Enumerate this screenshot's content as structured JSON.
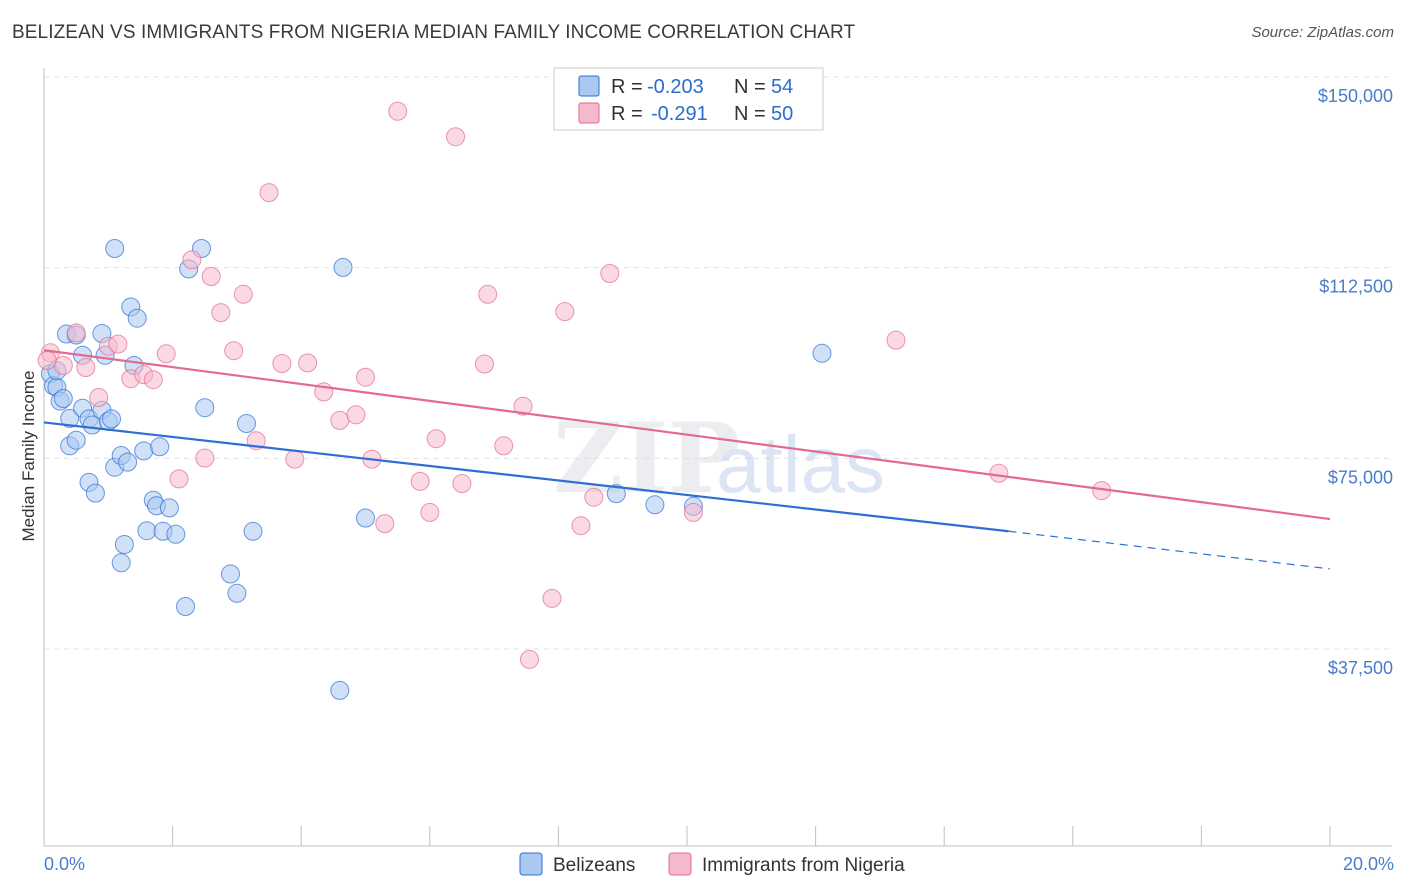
{
  "title": "BELIZEAN VS IMMIGRANTS FROM NIGERIA MEDIAN FAMILY INCOME CORRELATION CHART",
  "source": "Source: ZipAtlas.com",
  "watermark": {
    "zip": "ZIP",
    "atlas": "atlas"
  },
  "colors": {
    "blue": "#2d6fd4",
    "blue_fill": "#aac8f0",
    "pink": "#e46a93",
    "pink_fill": "#f5b9cc",
    "axis_text": "#4a7cc9"
  },
  "legend": {
    "rows": [
      {
        "r_label": "R =",
        "r_value": "-0.203",
        "n_label": "N =",
        "n_value": "54"
      },
      {
        "r_label": "R =",
        "r_value": "-0.291",
        "n_label": "N =",
        "n_value": "50"
      }
    ]
  },
  "chart_data": {
    "type": "scatter",
    "xlabel": "",
    "ylabel": "Median Family Income",
    "x_range": [
      0,
      20
    ],
    "ylim": [
      0,
      155000
    ],
    "y_ticks": [
      37500,
      75000,
      112500,
      150000
    ],
    "y_tick_labels": [
      "$37,500",
      "$75,000",
      "$112,500",
      "$150,000"
    ],
    "x_tick_labels": [
      "0.0%",
      "20.0%"
    ],
    "series": [
      {
        "name": "Belizeans",
        "color": "#2d6fd4",
        "r": -0.203,
        "n": 54,
        "trend": {
          "x0": 0,
          "y0": 85800,
          "x1": 15,
          "y1": 64400,
          "dash_x1": 20,
          "dash_y1": 57000
        },
        "points": [
          [
            0.1,
            95400
          ],
          [
            0.15,
            93000
          ],
          [
            0.2,
            92700
          ],
          [
            0.25,
            90000
          ],
          [
            0.3,
            90500
          ],
          [
            0.35,
            103200
          ],
          [
            0.4,
            86600
          ],
          [
            0.4,
            81200
          ],
          [
            0.5,
            103000
          ],
          [
            0.5,
            82300
          ],
          [
            0.6,
            88600
          ],
          [
            0.6,
            99000
          ],
          [
            0.7,
            86500
          ],
          [
            0.7,
            74000
          ],
          [
            0.75,
            85300
          ],
          [
            0.8,
            71900
          ],
          [
            0.9,
            103300
          ],
          [
            0.9,
            88200
          ],
          [
            0.95,
            99000
          ],
          [
            1.0,
            86000
          ],
          [
            1.05,
            86500
          ],
          [
            1.1,
            120000
          ],
          [
            1.1,
            77000
          ],
          [
            1.2,
            79300
          ],
          [
            1.2,
            58200
          ],
          [
            1.25,
            61800
          ],
          [
            1.3,
            78000
          ],
          [
            1.35,
            108500
          ],
          [
            1.4,
            97000
          ],
          [
            1.45,
            106300
          ],
          [
            1.55,
            80200
          ],
          [
            1.6,
            64500
          ],
          [
            1.7,
            70500
          ],
          [
            1.75,
            69400
          ],
          [
            1.8,
            81000
          ],
          [
            1.85,
            64400
          ],
          [
            1.95,
            69000
          ],
          [
            2.05,
            63800
          ],
          [
            2.2,
            49600
          ],
          [
            2.25,
            116000
          ],
          [
            2.45,
            120000
          ],
          [
            2.5,
            88700
          ],
          [
            2.9,
            56000
          ],
          [
            3.0,
            52200
          ],
          [
            3.15,
            85600
          ],
          [
            3.25,
            64400
          ],
          [
            4.6,
            33100
          ],
          [
            4.65,
            116300
          ],
          [
            5.0,
            67000
          ],
          [
            8.9,
            71800
          ],
          [
            9.5,
            69600
          ],
          [
            10.1,
            69300
          ],
          [
            12.1,
            99400
          ],
          [
            0.2,
            96000
          ]
        ]
      },
      {
        "name": "Immigrants from Nigeria",
        "color": "#e46a93",
        "r": -0.291,
        "n": 50,
        "trend": {
          "x0": 0,
          "y0": 100000,
          "x1": 20,
          "y1": 66800
        },
        "points": [
          [
            0.1,
            99500
          ],
          [
            0.3,
            97000
          ],
          [
            0.5,
            103400
          ],
          [
            0.65,
            96600
          ],
          [
            0.85,
            90700
          ],
          [
            1.0,
            100800
          ],
          [
            1.15,
            101200
          ],
          [
            1.35,
            94400
          ],
          [
            1.55,
            95200
          ],
          [
            1.7,
            94200
          ],
          [
            1.9,
            99300
          ],
          [
            2.1,
            74700
          ],
          [
            2.3,
            117800
          ],
          [
            2.5,
            78800
          ],
          [
            2.6,
            114500
          ],
          [
            2.75,
            107400
          ],
          [
            2.95,
            99900
          ],
          [
            3.1,
            111000
          ],
          [
            3.3,
            82200
          ],
          [
            3.5,
            131000
          ],
          [
            3.7,
            97400
          ],
          [
            3.9,
            78600
          ],
          [
            4.1,
            97500
          ],
          [
            4.35,
            91800
          ],
          [
            4.6,
            86200
          ],
          [
            4.85,
            87300
          ],
          [
            5.0,
            94700
          ],
          [
            5.1,
            78600
          ],
          [
            5.3,
            65900
          ],
          [
            5.5,
            147000
          ],
          [
            5.85,
            74200
          ],
          [
            6.0,
            68100
          ],
          [
            6.1,
            82600
          ],
          [
            6.4,
            142000
          ],
          [
            6.5,
            73800
          ],
          [
            6.85,
            97300
          ],
          [
            6.9,
            111000
          ],
          [
            7.15,
            81200
          ],
          [
            7.45,
            89000
          ],
          [
            7.55,
            39200
          ],
          [
            7.9,
            51200
          ],
          [
            8.1,
            107600
          ],
          [
            8.35,
            65500
          ],
          [
            8.55,
            71100
          ],
          [
            8.8,
            115100
          ],
          [
            10.1,
            68100
          ],
          [
            13.25,
            102000
          ],
          [
            14.85,
            75800
          ],
          [
            16.45,
            72400
          ],
          [
            0.05,
            98000
          ]
        ]
      }
    ]
  }
}
